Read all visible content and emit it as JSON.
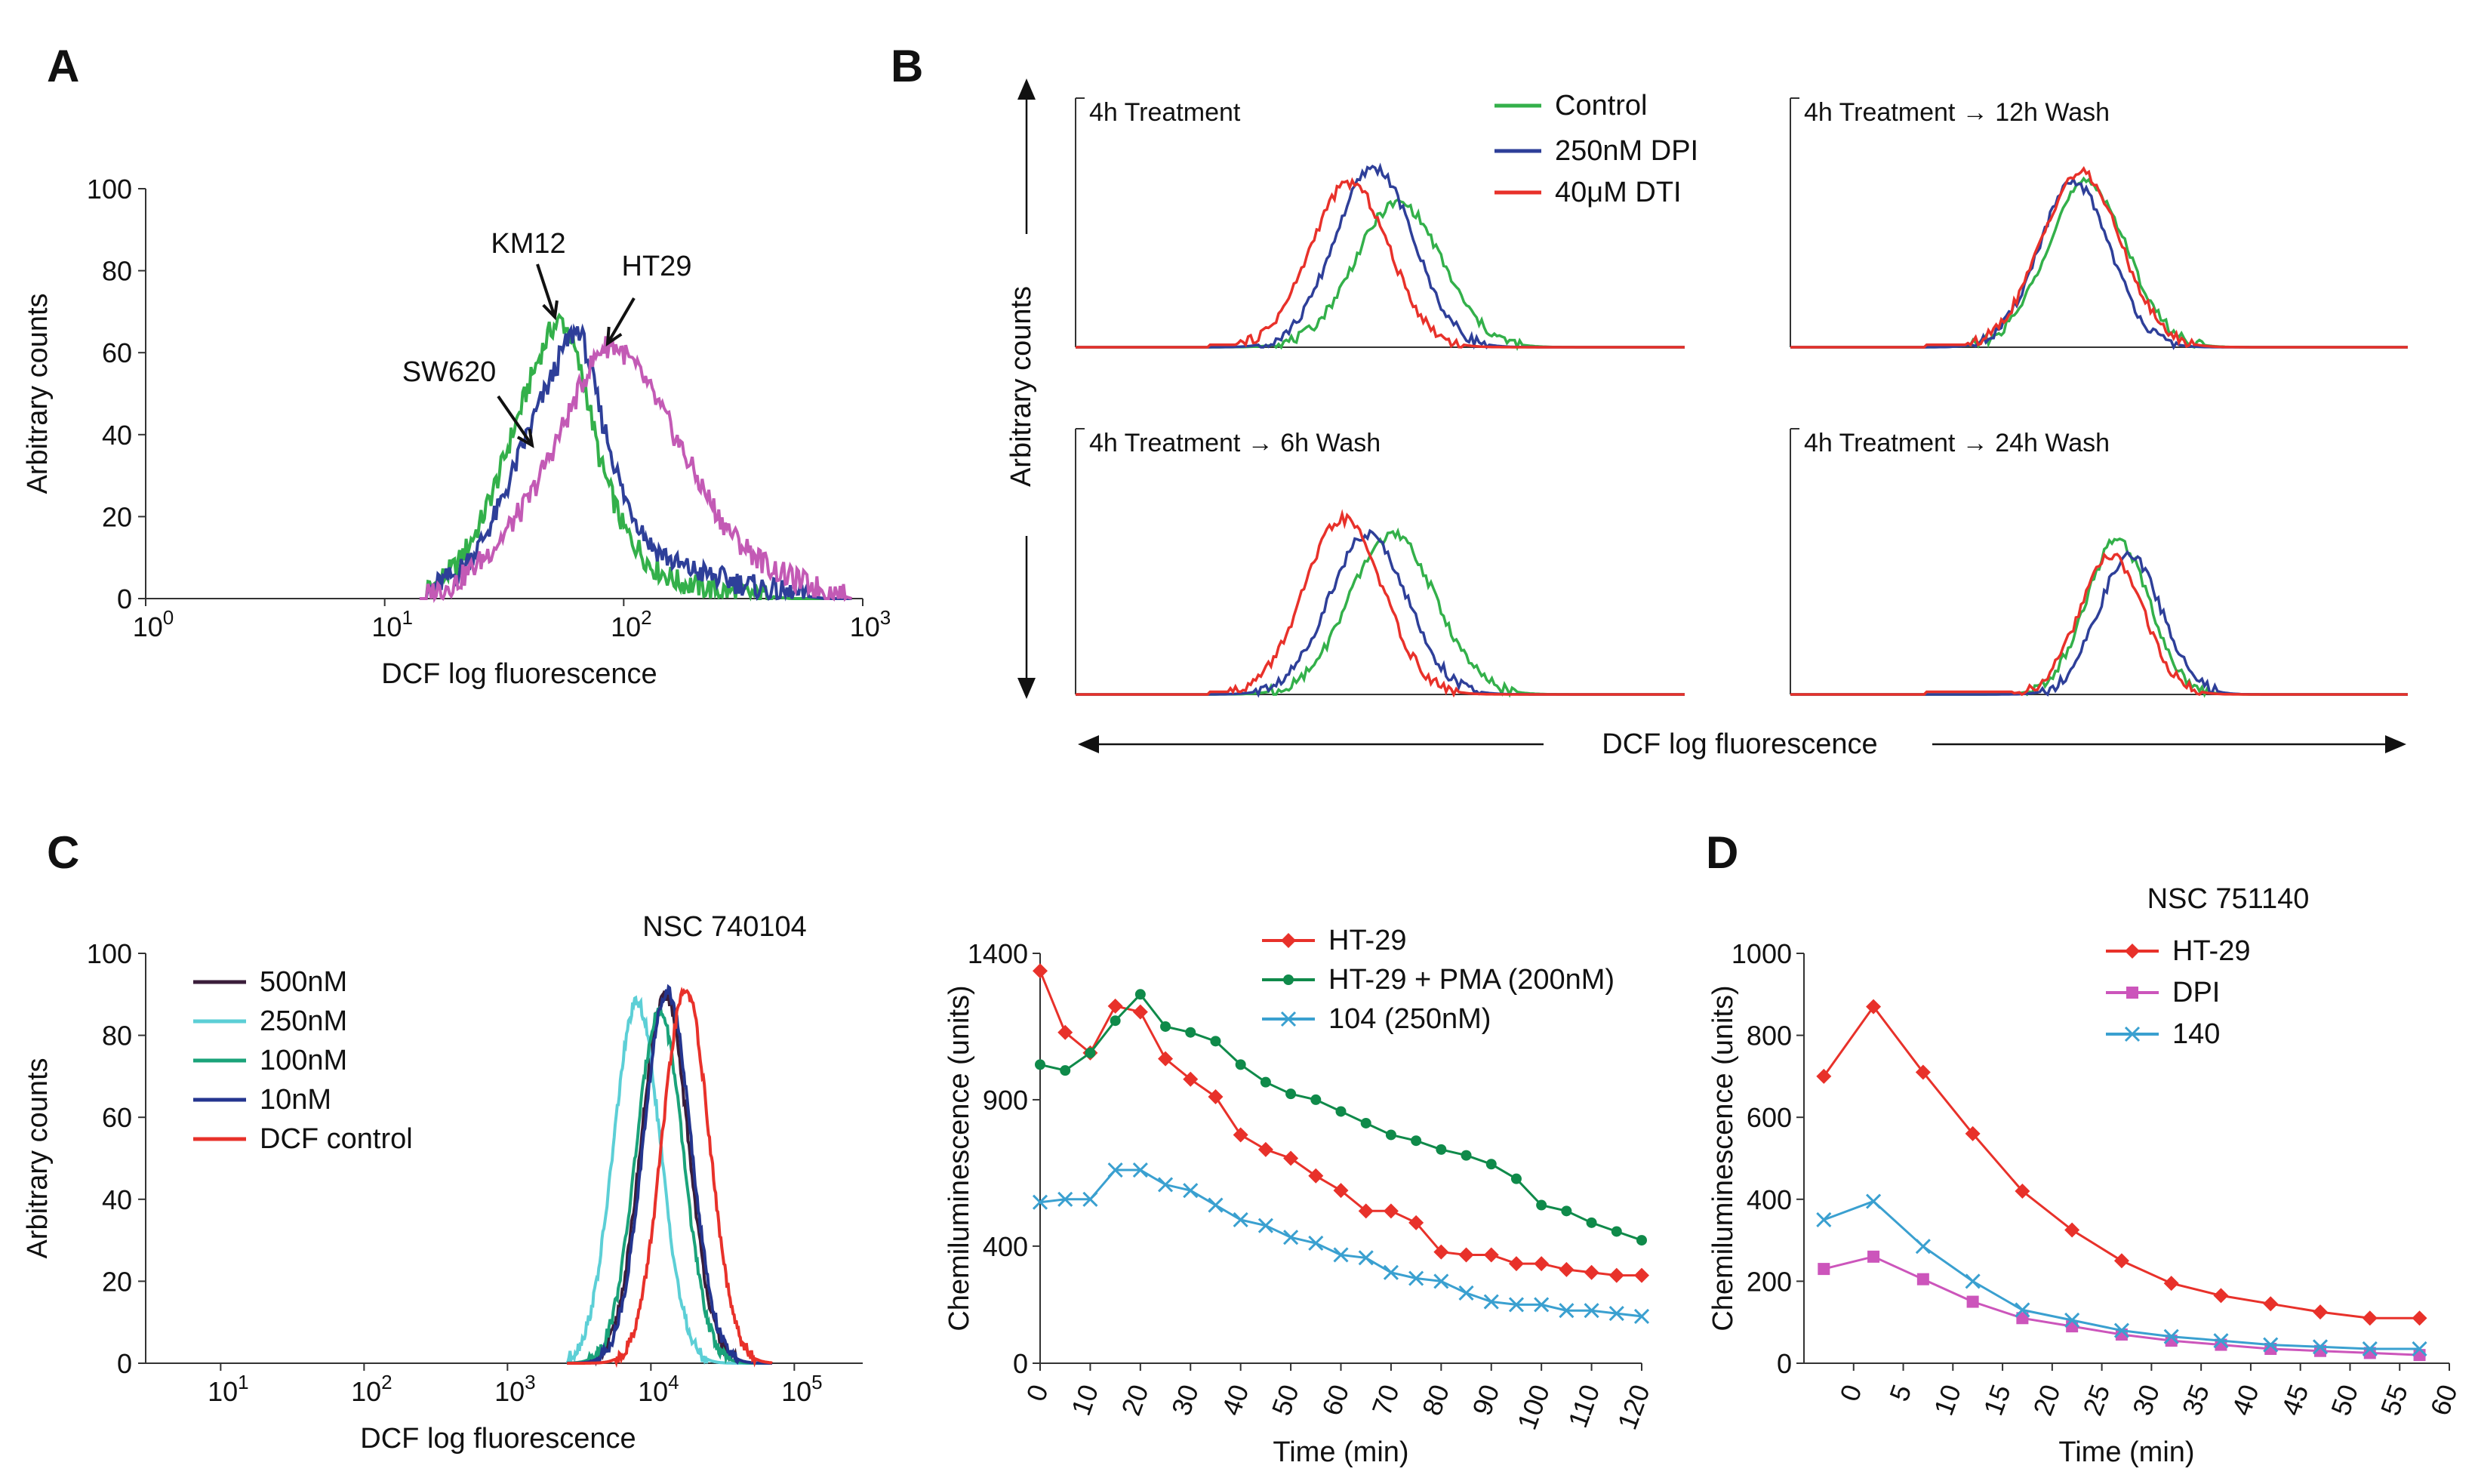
{
  "panels": {
    "A": "A",
    "B": "B",
    "C": "C",
    "D": "D"
  },
  "colors": {
    "green": "#33b04a",
    "blue": "#2e3f99",
    "magenta": "#c35ab5",
    "red": "#e8312a",
    "dark": "#3a1d3a",
    "cyan": "#5ccfd6",
    "teal": "#1aa37a",
    "navy": "#24358f",
    "darkgreen": "#0f8a4a",
    "skyblue": "#3aa0d0",
    "pink": "#cc55bb"
  },
  "chart_data": [
    {
      "id": "A",
      "type": "line",
      "title": "",
      "xlabel": "DCF log fluorescence",
      "ylabel": "Arbitrary counts",
      "xscale": "log",
      "xlim": [
        1,
        1000
      ],
      "ylim": [
        0,
        100
      ],
      "xticks": [
        {
          "v": 1,
          "base": "10",
          "exp": "0"
        },
        {
          "v": 10,
          "base": "10",
          "exp": "1"
        },
        {
          "v": 100,
          "base": "10",
          "exp": "2"
        },
        {
          "v": 1000,
          "base": "10",
          "exp": "3"
        }
      ],
      "yticks": [
        0,
        20,
        40,
        60,
        80,
        100
      ],
      "annotations": [
        "KM12",
        "HT29",
        "SW620"
      ],
      "series": [
        {
          "name": "SW620",
          "color": "#33b04a",
          "x": [
            15,
            20,
            25,
            30,
            35,
            40,
            45,
            50,
            55,
            60,
            70,
            80,
            100,
            130,
            170,
            250,
            350,
            500
          ],
          "y": [
            2,
            8,
            18,
            30,
            42,
            52,
            60,
            66,
            68,
            64,
            50,
            33,
            17,
            8,
            4,
            2,
            1,
            0
          ]
        },
        {
          "name": "KM12",
          "color": "#2e3f99",
          "x": [
            15,
            20,
            25,
            30,
            35,
            40,
            45,
            50,
            55,
            60,
            65,
            70,
            80,
            100,
            130,
            170,
            250,
            350,
            500,
            700
          ],
          "y": [
            2,
            6,
            13,
            22,
            32,
            41,
            48,
            54,
            60,
            64,
            66,
            60,
            45,
            25,
            13,
            8,
            5,
            3,
            1,
            0
          ]
        },
        {
          "name": "HT29",
          "color": "#c35ab5",
          "x": [
            15,
            20,
            25,
            30,
            40,
            50,
            60,
            70,
            80,
            90,
            100,
            120,
            150,
            200,
            250,
            300,
            400,
            500,
            700,
            900
          ],
          "y": [
            1,
            4,
            9,
            14,
            24,
            36,
            46,
            55,
            61,
            62,
            60,
            54,
            44,
            30,
            20,
            14,
            8,
            5,
            2,
            0
          ]
        }
      ]
    },
    {
      "id": "B",
      "type": "line",
      "xlabel": "DCF log fluorescence",
      "ylabel": "Arbitrary counts",
      "legend": [
        "Control",
        "250nM DPI",
        "40μM DTI"
      ],
      "legend_colors": [
        "#33b04a",
        "#2e3f99",
        "#e8312a"
      ],
      "subplots": [
        {
          "title": "4h Treatment",
          "series": [
            {
              "name": "Control",
              "peak": 0.53,
              "width": 0.11,
              "height": 0.58
            },
            {
              "name": "250nM DPI",
              "peak": 0.49,
              "width": 0.1,
              "height": 0.72
            },
            {
              "name": "40μM DTI",
              "peak": 0.45,
              "width": 0.1,
              "height": 0.66
            }
          ]
        },
        {
          "title": "4h Treatment → 12h Wash",
          "series": [
            {
              "name": "Control",
              "peak": 0.48,
              "width": 0.1,
              "height": 0.66
            },
            {
              "name": "250nM DPI",
              "peak": 0.46,
              "width": 0.09,
              "height": 0.66
            },
            {
              "name": "40μM DTI",
              "peak": 0.47,
              "width": 0.1,
              "height": 0.7
            }
          ]
        },
        {
          "title": "4h Treatment → 6h Wash",
          "series": [
            {
              "name": "Control",
              "peak": 0.52,
              "width": 0.11,
              "height": 0.6
            },
            {
              "name": "250nM DPI",
              "peak": 0.48,
              "width": 0.1,
              "height": 0.6
            },
            {
              "name": "40μM DTI",
              "peak": 0.44,
              "width": 0.1,
              "height": 0.66
            }
          ]
        },
        {
          "title": "4h Treatment → 24h Wash",
          "series": [
            {
              "name": "Control",
              "peak": 0.53,
              "width": 0.08,
              "height": 0.58
            },
            {
              "name": "250nM DPI",
              "peak": 0.55,
              "width": 0.08,
              "height": 0.52
            },
            {
              "name": "40μM DTI",
              "peak": 0.52,
              "width": 0.08,
              "height": 0.52
            }
          ]
        }
      ]
    },
    {
      "id": "C1",
      "type": "line",
      "title": "NSC 740104",
      "xlabel": "DCF log fluorescence",
      "ylabel": "Arbitrary counts",
      "xscale": "log",
      "xlim": [
        3,
        300000
      ],
      "ylim": [
        0,
        100
      ],
      "xticks": [
        {
          "v": 10,
          "base": "10",
          "exp": "1"
        },
        {
          "v": 100,
          "base": "10",
          "exp": "2"
        },
        {
          "v": 1000,
          "base": "10",
          "exp": "3"
        },
        {
          "v": 10000,
          "base": "10",
          "exp": "4"
        },
        {
          "v": 100000,
          "base": "10",
          "exp": "5"
        }
      ],
      "yticks": [
        0,
        20,
        40,
        60,
        80,
        100
      ],
      "series": [
        {
          "name": "500nM",
          "color": "#3a1d3a",
          "peak": 12500,
          "height": 90
        },
        {
          "name": "250nM",
          "color": "#5ccfd6",
          "peak": 8000,
          "height": 88
        },
        {
          "name": "100nM",
          "color": "#1aa37a",
          "peak": 11500,
          "height": 86
        },
        {
          "name": "10nM",
          "color": "#24358f",
          "peak": 13000,
          "height": 91
        },
        {
          "name": "DCF control",
          "color": "#e8312a",
          "peak": 17500,
          "height": 91
        }
      ]
    },
    {
      "id": "C2",
      "type": "line",
      "xlabel": "Time (min)",
      "ylabel": "Chemiluminescence (units)",
      "xlim": [
        0,
        120
      ],
      "ylim": [
        0,
        1400
      ],
      "xticks": [
        0,
        10,
        20,
        30,
        40,
        50,
        60,
        70,
        80,
        90,
        100,
        110,
        120
      ],
      "yticks": [
        0,
        400,
        900,
        1400
      ],
      "x": [
        0,
        5,
        10,
        15,
        20,
        25,
        30,
        35,
        40,
        45,
        50,
        55,
        60,
        65,
        70,
        75,
        80,
        85,
        90,
        95,
        100,
        105,
        110,
        115,
        120
      ],
      "series": [
        {
          "name": "HT-29",
          "color": "#e8312a",
          "marker": "diamond",
          "values": [
            1340,
            1130,
            1060,
            1220,
            1200,
            1040,
            970,
            910,
            780,
            730,
            700,
            640,
            590,
            520,
            520,
            480,
            380,
            370,
            370,
            340,
            340,
            320,
            310,
            300,
            300
          ]
        },
        {
          "name": "HT-29 + PMA (200nM)",
          "color": "#0f8a4a",
          "marker": "circle",
          "values": [
            1020,
            1000,
            1060,
            1170,
            1260,
            1150,
            1130,
            1100,
            1020,
            960,
            920,
            900,
            860,
            820,
            780,
            760,
            730,
            710,
            680,
            630,
            540,
            520,
            480,
            450,
            420
          ]
        },
        {
          "name": "104 (250nM)",
          "color": "#3aa0d0",
          "marker": "x",
          "values": [
            550,
            560,
            560,
            660,
            660,
            610,
            590,
            540,
            490,
            470,
            430,
            410,
            370,
            360,
            310,
            290,
            280,
            240,
            210,
            200,
            200,
            180,
            180,
            170,
            160
          ]
        }
      ]
    },
    {
      "id": "D",
      "type": "line",
      "title": "NSC 751140",
      "xlabel": "Time (min)",
      "ylabel": "Chemiluminescence (units)",
      "xlim": [
        -5,
        60
      ],
      "ylim": [
        0,
        1000
      ],
      "xticks": [
        0,
        5,
        10,
        15,
        20,
        25,
        30,
        35,
        40,
        45,
        50,
        55,
        60
      ],
      "yticks": [
        0,
        200,
        400,
        600,
        800,
        1000
      ],
      "x": [
        -3,
        2,
        7,
        12,
        17,
        22,
        27,
        32,
        37,
        42,
        47,
        52,
        57
      ],
      "series": [
        {
          "name": "HT-29",
          "color": "#e8312a",
          "marker": "diamond",
          "values": [
            700,
            870,
            710,
            560,
            420,
            325,
            250,
            195,
            165,
            145,
            125,
            110,
            110
          ]
        },
        {
          "name": "DPI",
          "color": "#cc55bb",
          "marker": "square",
          "values": [
            230,
            260,
            205,
            150,
            110,
            90,
            70,
            55,
            45,
            35,
            30,
            25,
            20
          ]
        },
        {
          "name": "140",
          "color": "#3aa0d0",
          "marker": "x",
          "values": [
            350,
            395,
            285,
            200,
            130,
            105,
            80,
            65,
            55,
            45,
            40,
            35,
            35
          ]
        }
      ]
    }
  ]
}
